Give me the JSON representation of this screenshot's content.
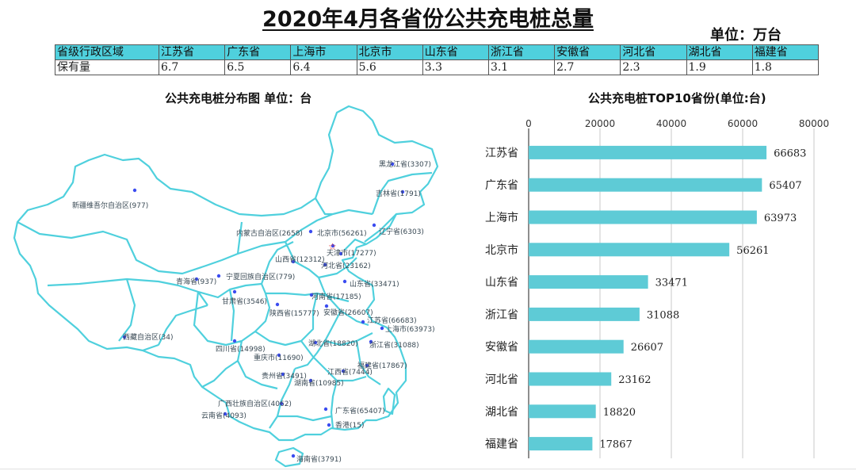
{
  "title": "2020年4月各省份公共充电桩总量",
  "unit": "单位：万台",
  "summary_table": {
    "header_label": "省级行政区域",
    "value_label": "保有量",
    "provinces": [
      "江苏省",
      "广东省",
      "上海市",
      "北京市",
      "山东省",
      "浙江省",
      "安徽省",
      "河北省",
      "湖北省",
      "福建省"
    ],
    "values": [
      "6.7",
      "6.5",
      "6.4",
      "5.6",
      "3.3",
      "3.1",
      "2.7",
      "2.3",
      "1.9",
      "1.8"
    ]
  },
  "map": {
    "title": "公共充电桩分布图  单位：台",
    "labels": [
      "黑龙江省(3307)",
      "吉林省(1791)",
      "辽宁省(6303)",
      "内蒙古自治区(2658)",
      "北京市(56261)",
      "天津市(17277)",
      "新疆维吾尔自治区(977)",
      "山西省(12312)",
      "河北省(23162)",
      "青海省(937)",
      "宁夏回族自治区(779)",
      "山东省(33471)",
      "甘肃省(3546)",
      "河南省(17185)",
      "陕西省(15777)",
      "安徽省(26607)",
      "江苏省(66683)",
      "上海市(63973)",
      "西藏自治区(34)",
      "四川省(14998)",
      "湖北省(18820)",
      "浙江省(31088)",
      "重庆市(11690)",
      "福建省(17867)",
      "贵州省(3491)",
      "江西省(7444)",
      "湖南省(10985)",
      "广西壮族自治区(4062)",
      "广东省(65407)",
      "云南省(4093)",
      "香港(15)",
      "海南省(3791)"
    ],
    "outline_color": "#4fd0dd",
    "point_color": "#3b4cf0",
    "capital_marker_color": "#e03030"
  },
  "chart_data": {
    "type": "bar",
    "orientation": "horizontal",
    "title": "公共充电桩TOP10省份(单位:台)",
    "categories": [
      "江苏省",
      "广东省",
      "上海市",
      "北京市",
      "山东省",
      "浙江省",
      "安徽省",
      "河北省",
      "湖北省",
      "福建省"
    ],
    "values": [
      66683,
      65407,
      63973,
      56261,
      33471,
      31088,
      26607,
      23162,
      18820,
      17867
    ],
    "xlim": [
      0,
      80000
    ],
    "ticks": [
      0,
      20000,
      40000,
      60000,
      80000
    ],
    "axis_position": "top",
    "grid": true,
    "bar_color": "#5ecbd6",
    "data_labels": true
  }
}
